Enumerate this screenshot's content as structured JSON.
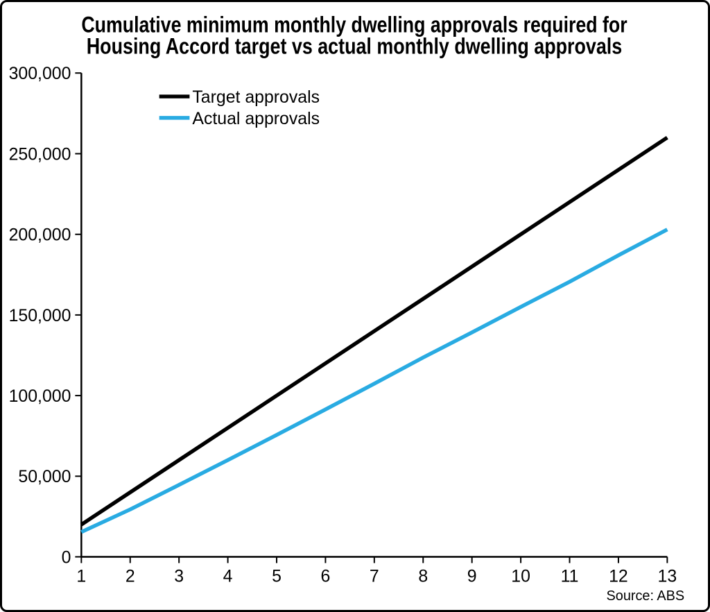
{
  "figure": {
    "background": "#ffffff",
    "border_color": "#000000"
  },
  "chart_data": {
    "type": "line",
    "title": "Cumulative minimum monthly dwelling approvals required for Housing Accord target vs actual monthly dwelling approvals",
    "title_lines": [
      "Cumulative minimum monthly dwelling approvals required for",
      "Housing Accord target vs actual monthly dwelling approvals"
    ],
    "xlabel": "",
    "ylabel": "",
    "xlim": [
      1,
      13
    ],
    "ylim": [
      0,
      300000
    ],
    "grid": false,
    "legend_position": "top-left-inside",
    "x": [
      1,
      2,
      3,
      4,
      5,
      6,
      7,
      8,
      9,
      10,
      11,
      12,
      13
    ],
    "x_tick_labels": [
      "1",
      "2",
      "3",
      "4",
      "5",
      "6",
      "7",
      "8",
      "9",
      "10",
      "11",
      "12",
      "13"
    ],
    "y_ticks": [
      0,
      50000,
      100000,
      150000,
      200000,
      250000,
      300000
    ],
    "y_tick_labels": [
      "0",
      "50,000",
      "100,000",
      "150,000",
      "200,000",
      "250,000",
      "300,000"
    ],
    "series": [
      {
        "name": "Target approvals",
        "color": "#000000",
        "values": [
          20000,
          40000,
          60000,
          80000,
          100000,
          120000,
          140000,
          160000,
          180000,
          200000,
          220000,
          240000,
          260000
        ]
      },
      {
        "name": "Actual approvals",
        "color": "#29abe2",
        "values": [
          15400,
          29400,
          44600,
          60000,
          75600,
          91400,
          107400,
          123600,
          139200,
          155000,
          170600,
          187000,
          203000
        ]
      }
    ],
    "source": "Source: ABS"
  }
}
